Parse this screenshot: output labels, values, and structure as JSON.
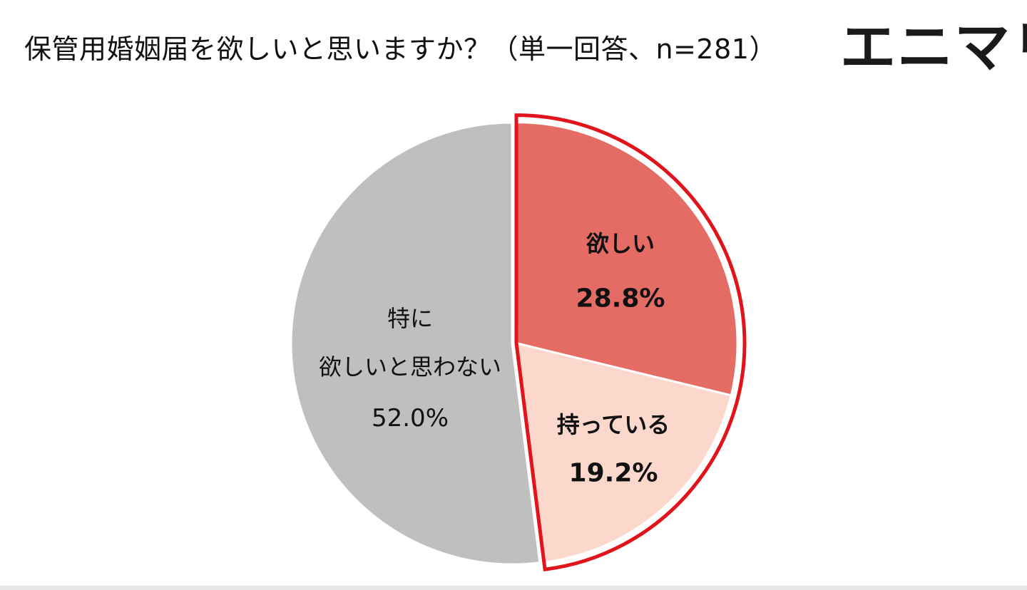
{
  "title": "保管用婚姻届を欲しいと思いますか？（単一回答、n=281）",
  "logo_text": "エニマリ",
  "chart_data": {
    "type": "pie",
    "title": "保管用婚姻届を欲しいと思いますか？（単一回答、n=281）",
    "slices": [
      {
        "label": "欲しい",
        "value": 28.8,
        "value_label": "28.8%",
        "color": "#e46c65",
        "emphasized": true
      },
      {
        "label": "持っている",
        "value": 19.2,
        "value_label": "19.2%",
        "color": "#fcd8cc",
        "emphasized": true
      },
      {
        "label_lines": [
          "特に",
          "欲しいと思わない"
        ],
        "value": 52.0,
        "value_label": "52.0%",
        "color": "#bfbfbf",
        "emphasized": false
      }
    ],
    "start": "12 o'clock",
    "direction": "clockwise",
    "highlight_border_color": "#e0141a"
  }
}
